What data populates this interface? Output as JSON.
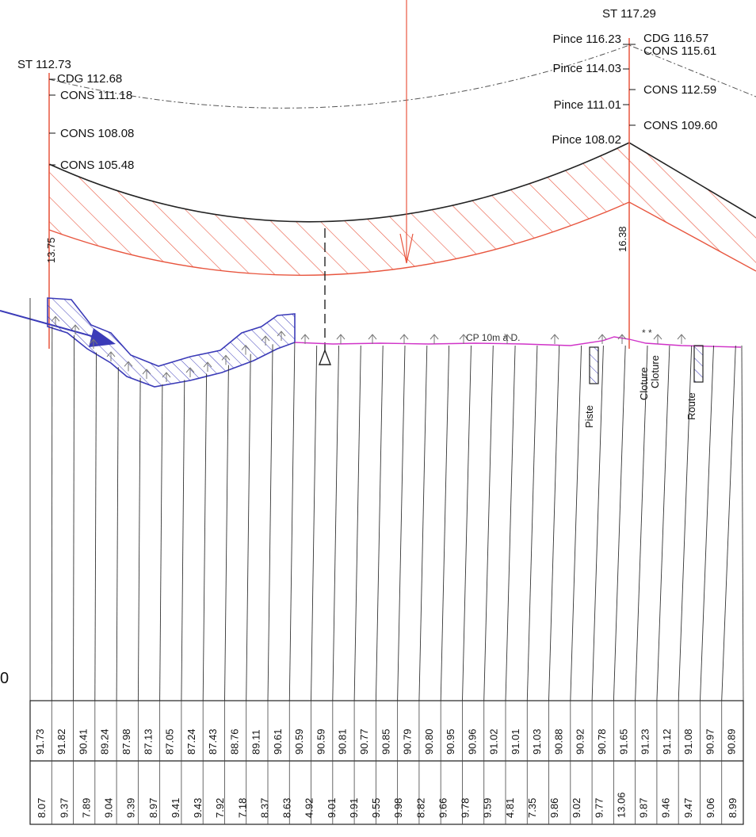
{
  "left_support": {
    "st": "ST 112.73",
    "cdg": "CDG 112.68",
    "cons": [
      "CONS 111.18",
      "CONS 108.08",
      "CONS 105.48"
    ],
    "height": "13.75"
  },
  "right_support": {
    "st": "ST 117.29",
    "cdg": "CDG 116.57",
    "cons": [
      "CONS 115.61",
      "CONS 112.59",
      "CONS 109.60"
    ],
    "pince": [
      "Pince 116.23",
      "Pince 114.03",
      "Pince 111.01",
      "Pince 108.02"
    ],
    "height": "16.38"
  },
  "ground_note": "CP 10m à D.",
  "features": {
    "piste": "Piste",
    "cloture1": "Cloture",
    "cloture2": "Cloture",
    "route": "Route"
  },
  "left_edge_char": "0",
  "altitudes": [
    "91.73",
    "91.82",
    "90.41",
    "89.24",
    "87.98",
    "87.13",
    "87.05",
    "87.24",
    "87.43",
    "88.76",
    "89.11",
    "90.61",
    "90.59",
    "90.59",
    "90.81",
    "90.77",
    "90.85",
    "90.79",
    "90.80",
    "90.95",
    "90.96",
    "91.02",
    "91.01",
    "91.03",
    "90.88",
    "90.92",
    "90.78",
    "91.65",
    "91.23",
    "91.12",
    "91.08",
    "90.97",
    "90.89"
  ],
  "distances": [
    "8.07",
    "9.37",
    "7.89",
    "9.04",
    "9.39",
    "8.97",
    "9.41",
    "9.43",
    "7.92",
    "7.18",
    "8.37",
    "8.63",
    "4.92",
    "9.01",
    "9.91",
    "9.55",
    "9.98",
    "8.82",
    "9.66",
    "9.78",
    "9.59",
    "4.81",
    "7.35",
    "9.86",
    "9.02",
    "9.77",
    "13.06",
    "9.87",
    "9.46",
    "9.47",
    "9.06",
    "8.99"
  ],
  "colors": {
    "conductor": "#222222",
    "clearance": "#e8563f",
    "ground": "#d033c8",
    "river": "#3b3bb8",
    "grid": "#333333",
    "vegetation": "#777777"
  }
}
